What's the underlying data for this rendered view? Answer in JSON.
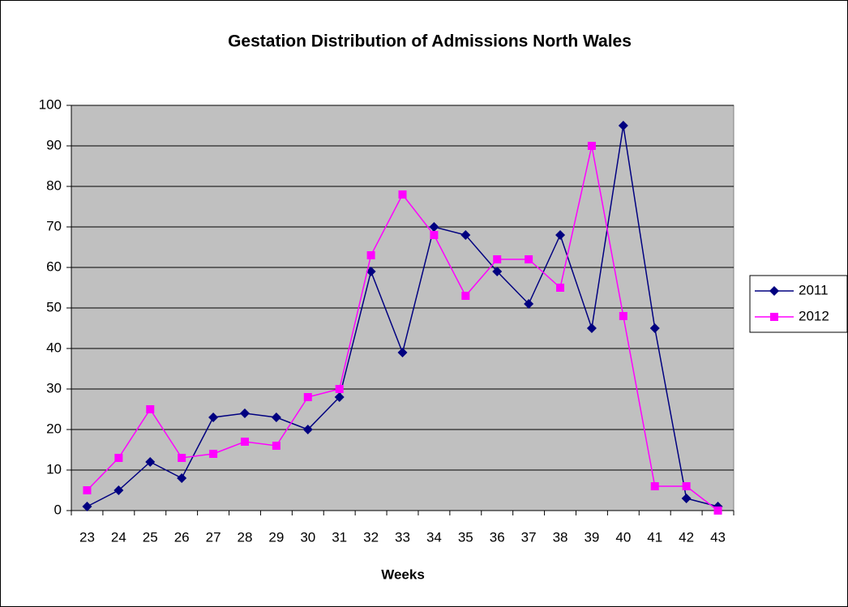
{
  "chart_data": {
    "type": "line",
    "title": "Gestation Distribution of Admissions North Wales",
    "x_label": "Weeks",
    "categories": [
      23,
      24,
      25,
      26,
      27,
      28,
      29,
      30,
      31,
      32,
      33,
      34,
      35,
      36,
      37,
      38,
      39,
      40,
      41,
      42,
      43
    ],
    "series": [
      {
        "name": "2011",
        "color": "#000080",
        "marker": "diamond",
        "values": [
          1,
          5,
          12,
          8,
          23,
          24,
          23,
          20,
          28,
          59,
          39,
          70,
          68,
          59,
          51,
          68,
          45,
          95,
          45,
          3,
          1
        ]
      },
      {
        "name": "2012",
        "color": "#ff00ff",
        "marker": "square",
        "values": [
          5,
          13,
          25,
          13,
          14,
          17,
          16,
          28,
          30,
          63,
          78,
          68,
          53,
          62,
          62,
          55,
          90,
          48,
          6,
          6,
          0
        ]
      }
    ],
    "ylim": [
      0,
      100
    ],
    "yticks": [
      0,
      10,
      20,
      30,
      40,
      50,
      60,
      70,
      80,
      90,
      100
    ],
    "grid": true,
    "legend": "right"
  }
}
